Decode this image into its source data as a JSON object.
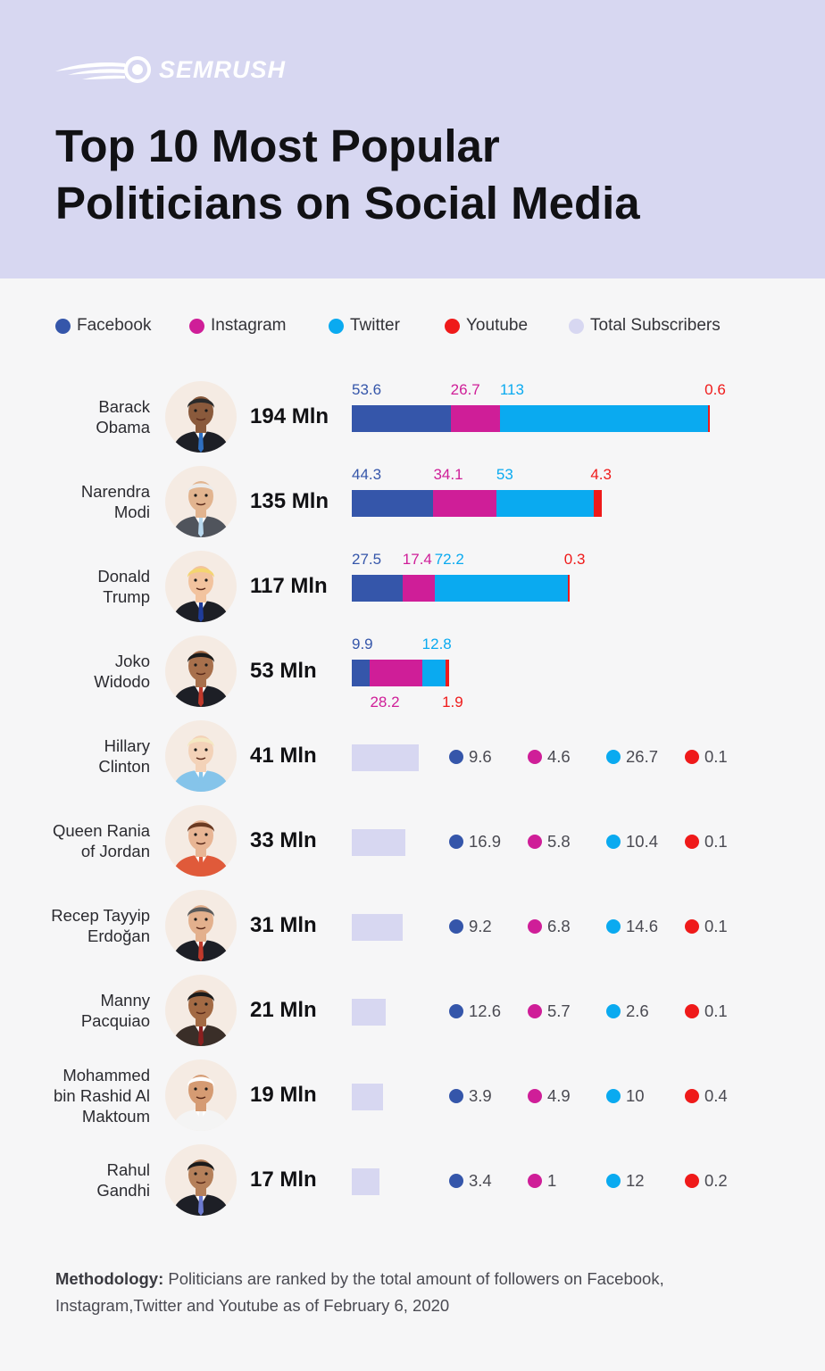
{
  "brand": {
    "logo_text": "SEMRUSH"
  },
  "title_lines": [
    "Top 10 Most Popular",
    "Politicians on Social Media"
  ],
  "colors": {
    "facebook": "#3556aa",
    "instagram": "#cf1e98",
    "twitter": "#0aaaf0",
    "youtube": "#ef1a1a",
    "total": "#d7d7f1"
  },
  "legend": [
    {
      "label": "Facebook",
      "color": "#3556aa"
    },
    {
      "label": "Instagram",
      "color": "#cf1e98"
    },
    {
      "label": "Twitter",
      "color": "#0aaaf0"
    },
    {
      "label": "Youtube",
      "color": "#ef1a1a"
    },
    {
      "label": "Total Subscribers",
      "color": "#d7d7f1"
    }
  ],
  "chart_data": {
    "type": "bar",
    "orientation": "horizontal",
    "stacked": true,
    "unit": "Mln",
    "series_names": [
      "Facebook",
      "Instagram",
      "Twitter",
      "Youtube"
    ],
    "rows": [
      {
        "name": "Barack Obama",
        "total_label": "194 Mln",
        "total": 194,
        "values": [
          53.6,
          26.7,
          113,
          0.6
        ],
        "labels": [
          "53.6",
          "26.7",
          "113",
          "0.6"
        ]
      },
      {
        "name": "Narendra Modi",
        "total_label": "135 Mln",
        "total": 135,
        "values": [
          44.3,
          34.1,
          53,
          4.3
        ],
        "labels": [
          "44.3",
          "34.1",
          "53",
          "4.3"
        ]
      },
      {
        "name": "Donald Trump",
        "total_label": "117 Mln",
        "total": 117,
        "values": [
          27.5,
          17.4,
          72.2,
          0.3
        ],
        "labels": [
          "27.5",
          "17.4",
          "72.2",
          "0.3"
        ]
      },
      {
        "name": "Joko Widodo",
        "total_label": "53 Mln",
        "total": 53,
        "values": [
          9.9,
          28.2,
          12.8,
          1.9
        ],
        "labels": [
          "9.9",
          "28.2",
          "12.8",
          "1.9"
        ]
      },
      {
        "name": "Hillary Clinton",
        "total_label": "41 Mln",
        "total": 41,
        "values": [
          9.6,
          4.6,
          26.7,
          0.1
        ],
        "labels": [
          "9.6",
          "4.6",
          "26.7",
          "0.1"
        ]
      },
      {
        "name": "Queen Rania of Jordan",
        "total_label": "33 Mln",
        "total": 33,
        "values": [
          16.9,
          5.8,
          10.4,
          0.1
        ],
        "labels": [
          "16.9",
          "5.8",
          "10.4",
          "0.1"
        ]
      },
      {
        "name": "Recep Tayyip Erdoğan",
        "total_label": "31 Mln",
        "total": 31,
        "values": [
          9.2,
          6.8,
          14.6,
          0.1
        ],
        "labels": [
          "9.2",
          "6.8",
          "14.6",
          "0.1"
        ]
      },
      {
        "name": "Manny Pacquiao",
        "total_label": "21 Mln",
        "total": 21,
        "values": [
          12.6,
          5.7,
          2.6,
          0.1
        ],
        "labels": [
          "12.6",
          "5.7",
          "2.6",
          "0.1"
        ]
      },
      {
        "name": "Mohammed bin Rashid Al Maktoum",
        "total_label": "19 Mln",
        "total": 19,
        "values": [
          3.9,
          4.9,
          10,
          0.4
        ],
        "labels": [
          "3.9",
          "4.9",
          "10",
          "0.4"
        ]
      },
      {
        "name": "Rahul Gandhi",
        "total_label": "17 Mln",
        "total": 17,
        "values": [
          3.4,
          1,
          12,
          0.2
        ],
        "labels": [
          "3.4",
          "1",
          "12",
          "0.2"
        ]
      }
    ]
  },
  "names_display": [
    [
      "Barack",
      "Obama"
    ],
    [
      "Narendra",
      "Modi"
    ],
    [
      "Donald",
      "Trump"
    ],
    [
      "Joko",
      "Widodo"
    ],
    [
      "Hillary",
      "Clinton"
    ],
    [
      "Queen Rania",
      "of Jordan"
    ],
    [
      "Recep Tayyip",
      "Erdoğan"
    ],
    [
      "Manny",
      "Pacquiao"
    ],
    [
      "Mohammed",
      "bin Rashid Al",
      "Maktoum"
    ],
    [
      "Rahul",
      "Gandhi"
    ]
  ],
  "avatars": [
    {
      "skin": "#8a5a3c",
      "hair": "#2a2a2a",
      "suit": "#1d1f26",
      "tie": "#2f6fc0"
    },
    {
      "skin": "#e2b48f",
      "hair": "#ecebea",
      "suit": "#50545c",
      "tie": "#b8d8ee"
    },
    {
      "skin": "#f2c39e",
      "hair": "#f4d571",
      "suit": "#1d1f26",
      "tie": "#1f3c9a"
    },
    {
      "skin": "#a8704c",
      "hair": "#1a1a1a",
      "suit": "#1d1f26",
      "tie": "#c0392b"
    },
    {
      "skin": "#f3d2b8",
      "hair": "#f4e8c2",
      "suit": "#85c4ea",
      "tie": "#85c4ea"
    },
    {
      "skin": "#e8b594",
      "hair": "#6a3a22",
      "suit": "#e05a3a",
      "tie": "#e05a3a"
    },
    {
      "skin": "#e3b08d",
      "hair": "#5a5a5a",
      "suit": "#1d1f26",
      "tie": "#c0392b"
    },
    {
      "skin": "#a36a44",
      "hair": "#1a1a1a",
      "suit": "#3a2e28",
      "tie": "#8b1f1f"
    },
    {
      "skin": "#d59b73",
      "hair": "#ffffff",
      "suit": "#f4f4f4",
      "tie": "#f4f4f4"
    },
    {
      "skin": "#b5805a",
      "hair": "#1a1a1a",
      "suit": "#1d1f26",
      "tie": "#6c7ad0"
    }
  ],
  "footer": {
    "bold": "Methodology:",
    "text_line1": " Politicians are ranked by the total amount of followers on Facebook,",
    "text_line2": "Instagram,Twitter and Youtube as of February 6, 2020"
  }
}
